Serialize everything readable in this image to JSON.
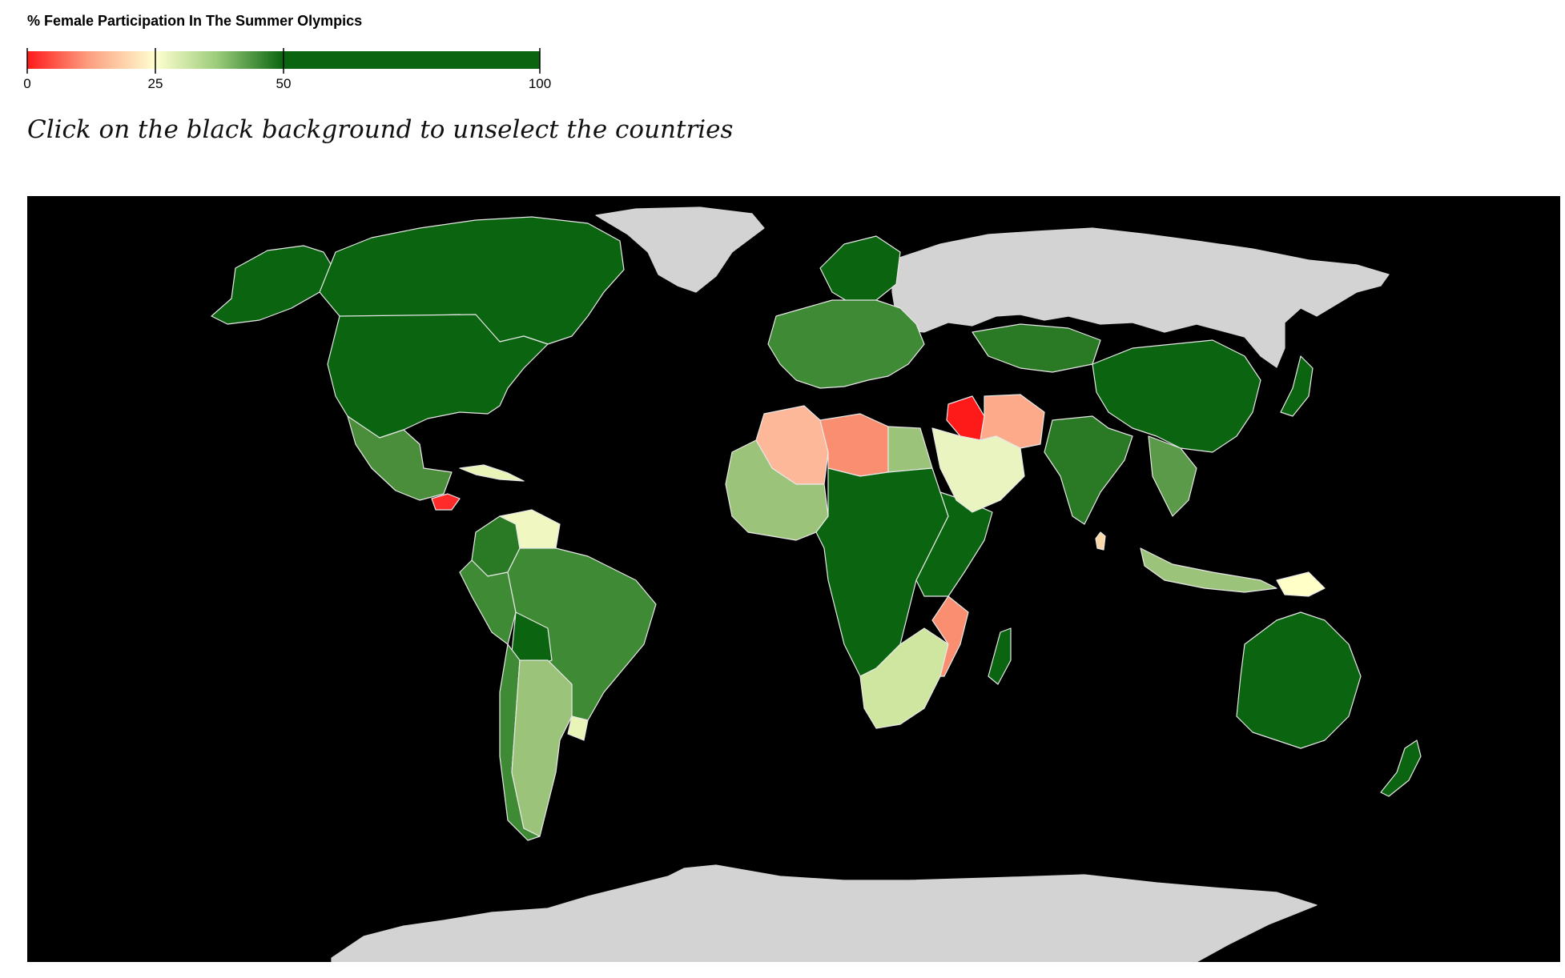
{
  "legend": {
    "title": "% Female Participation In The Summer Olympics",
    "domain": [
      0,
      100
    ],
    "ticks": [
      {
        "value": 0,
        "label": "0"
      },
      {
        "value": 25,
        "label": "25"
      },
      {
        "value": 50,
        "label": "50"
      },
      {
        "value": 100,
        "label": "100"
      }
    ],
    "gradient_stops": [
      {
        "value": 0,
        "color": "#ff1a1a"
      },
      {
        "value": 12,
        "color": "#fc9f80"
      },
      {
        "value": 25,
        "color": "#ffffd0"
      },
      {
        "value": 37,
        "color": "#9ccc7a"
      },
      {
        "value": 50,
        "color": "#0a6410"
      },
      {
        "value": 100,
        "color": "#0a6410"
      }
    ]
  },
  "instruction_text": "Click on the black background to unselect the countries",
  "map": {
    "background_color": "#000000",
    "no_data_color": "#d3d3d3",
    "border_color": "#e8e8e8",
    "countries": [
      {
        "name": "United States",
        "color": "#0b6410"
      },
      {
        "name": "Canada",
        "color": "#0b6410"
      },
      {
        "name": "Alaska",
        "color": "#0b6410"
      },
      {
        "name": "Mexico",
        "color": "#4a8d3a"
      },
      {
        "name": "Honduras",
        "color": "#ff2a2a"
      },
      {
        "name": "Cuba",
        "color": "#e8f4b8"
      },
      {
        "name": "Colombia",
        "color": "#2a7a25"
      },
      {
        "name": "Venezuela",
        "color": "#f0f7c0"
      },
      {
        "name": "Brazil",
        "color": "#3f8a35"
      },
      {
        "name": "Peru",
        "color": "#3f8a35"
      },
      {
        "name": "Bolivia",
        "color": "#0b6410"
      },
      {
        "name": "Argentina",
        "color": "#9cc37a"
      },
      {
        "name": "Chile",
        "color": "#3f8a35"
      },
      {
        "name": "Uruguay",
        "color": "#e8f4b8"
      },
      {
        "name": "Greenland",
        "color": "#d3d3d3"
      },
      {
        "name": "Russia",
        "color": "#d3d3d3"
      },
      {
        "name": "Antarctica",
        "color": "#d3d3d3"
      },
      {
        "name": "Europe",
        "color": "#3f8a35"
      },
      {
        "name": "Scandinavia",
        "color": "#0b6410"
      },
      {
        "name": "Algeria",
        "color": "#fcb898"
      },
      {
        "name": "Libya",
        "color": "#f98f70"
      },
      {
        "name": "Egypt",
        "color": "#9cc37a"
      },
      {
        "name": "West Africa",
        "color": "#9cc37a"
      },
      {
        "name": "Central Africa",
        "color": "#0b6410"
      },
      {
        "name": "East Africa",
        "color": "#0b6410"
      },
      {
        "name": "Southern Africa",
        "color": "#cfe6a0"
      },
      {
        "name": "Mozambique",
        "color": "#f98f70"
      },
      {
        "name": "Madagascar",
        "color": "#0b6410"
      },
      {
        "name": "Iraq",
        "color": "#ff1a1a"
      },
      {
        "name": "Iran",
        "color": "#fcaa8a"
      },
      {
        "name": "Saudi Arabia",
        "color": "#eaf4c0"
      },
      {
        "name": "Kazakhstan",
        "color": "#2a7a25"
      },
      {
        "name": "China",
        "color": "#0b6410"
      },
      {
        "name": "India",
        "color": "#2a7a25"
      },
      {
        "name": "Southeast Asia",
        "color": "#5a9a48"
      },
      {
        "name": "Indonesia",
        "color": "#9cc37a"
      },
      {
        "name": "Papua New Guinea",
        "color": "#ffffc8"
      },
      {
        "name": "Australia",
        "color": "#0b6410"
      },
      {
        "name": "New Zealand",
        "color": "#0b6410"
      },
      {
        "name": "Japan",
        "color": "#0b6410"
      },
      {
        "name": "Sri Lanka",
        "color": "#fcd8a8"
      }
    ]
  }
}
